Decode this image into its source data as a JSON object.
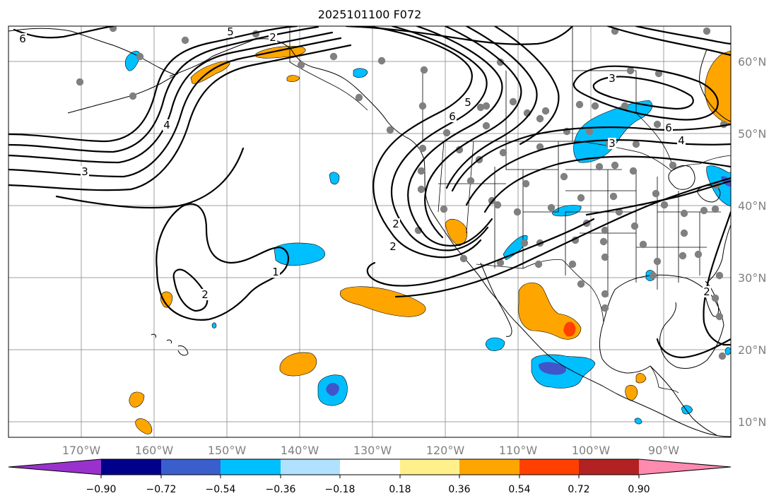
{
  "title": "2025101100 F072",
  "map": {
    "lon_labels": [
      "170°W",
      "160°W",
      "150°W",
      "140°W",
      "130°W",
      "120°W",
      "110°W",
      "100°W",
      "90°W"
    ],
    "lat_labels": [
      "60°N",
      "50°N",
      "40°N",
      "30°N",
      "20°N",
      "10°N"
    ],
    "contour_labels": [
      "6",
      "5",
      "2",
      "4",
      "3",
      "2",
      "1",
      "2",
      "6",
      "5",
      "3",
      "6",
      "3",
      "4",
      "2",
      "2"
    ],
    "fill_colors": {
      "neg_strong": "#4055c9",
      "neg_mid": "#00bfff",
      "pos_mid": "#ffa500",
      "pos_strong": "#ff4000"
    }
  },
  "colorbar": {
    "levels": [
      "−0.90",
      "−0.72",
      "−0.54",
      "−0.36",
      "−0.18",
      "0.18",
      "0.36",
      "0.54",
      "0.72",
      "0.90"
    ],
    "colors": [
      "#9932cc",
      "#00008b",
      "#3a5fcd",
      "#00bfff",
      "#b0e2ff",
      "#ffffff",
      "#fff08c",
      "#ffa500",
      "#ff4000",
      "#b22222",
      "#ff8ab0"
    ]
  }
}
